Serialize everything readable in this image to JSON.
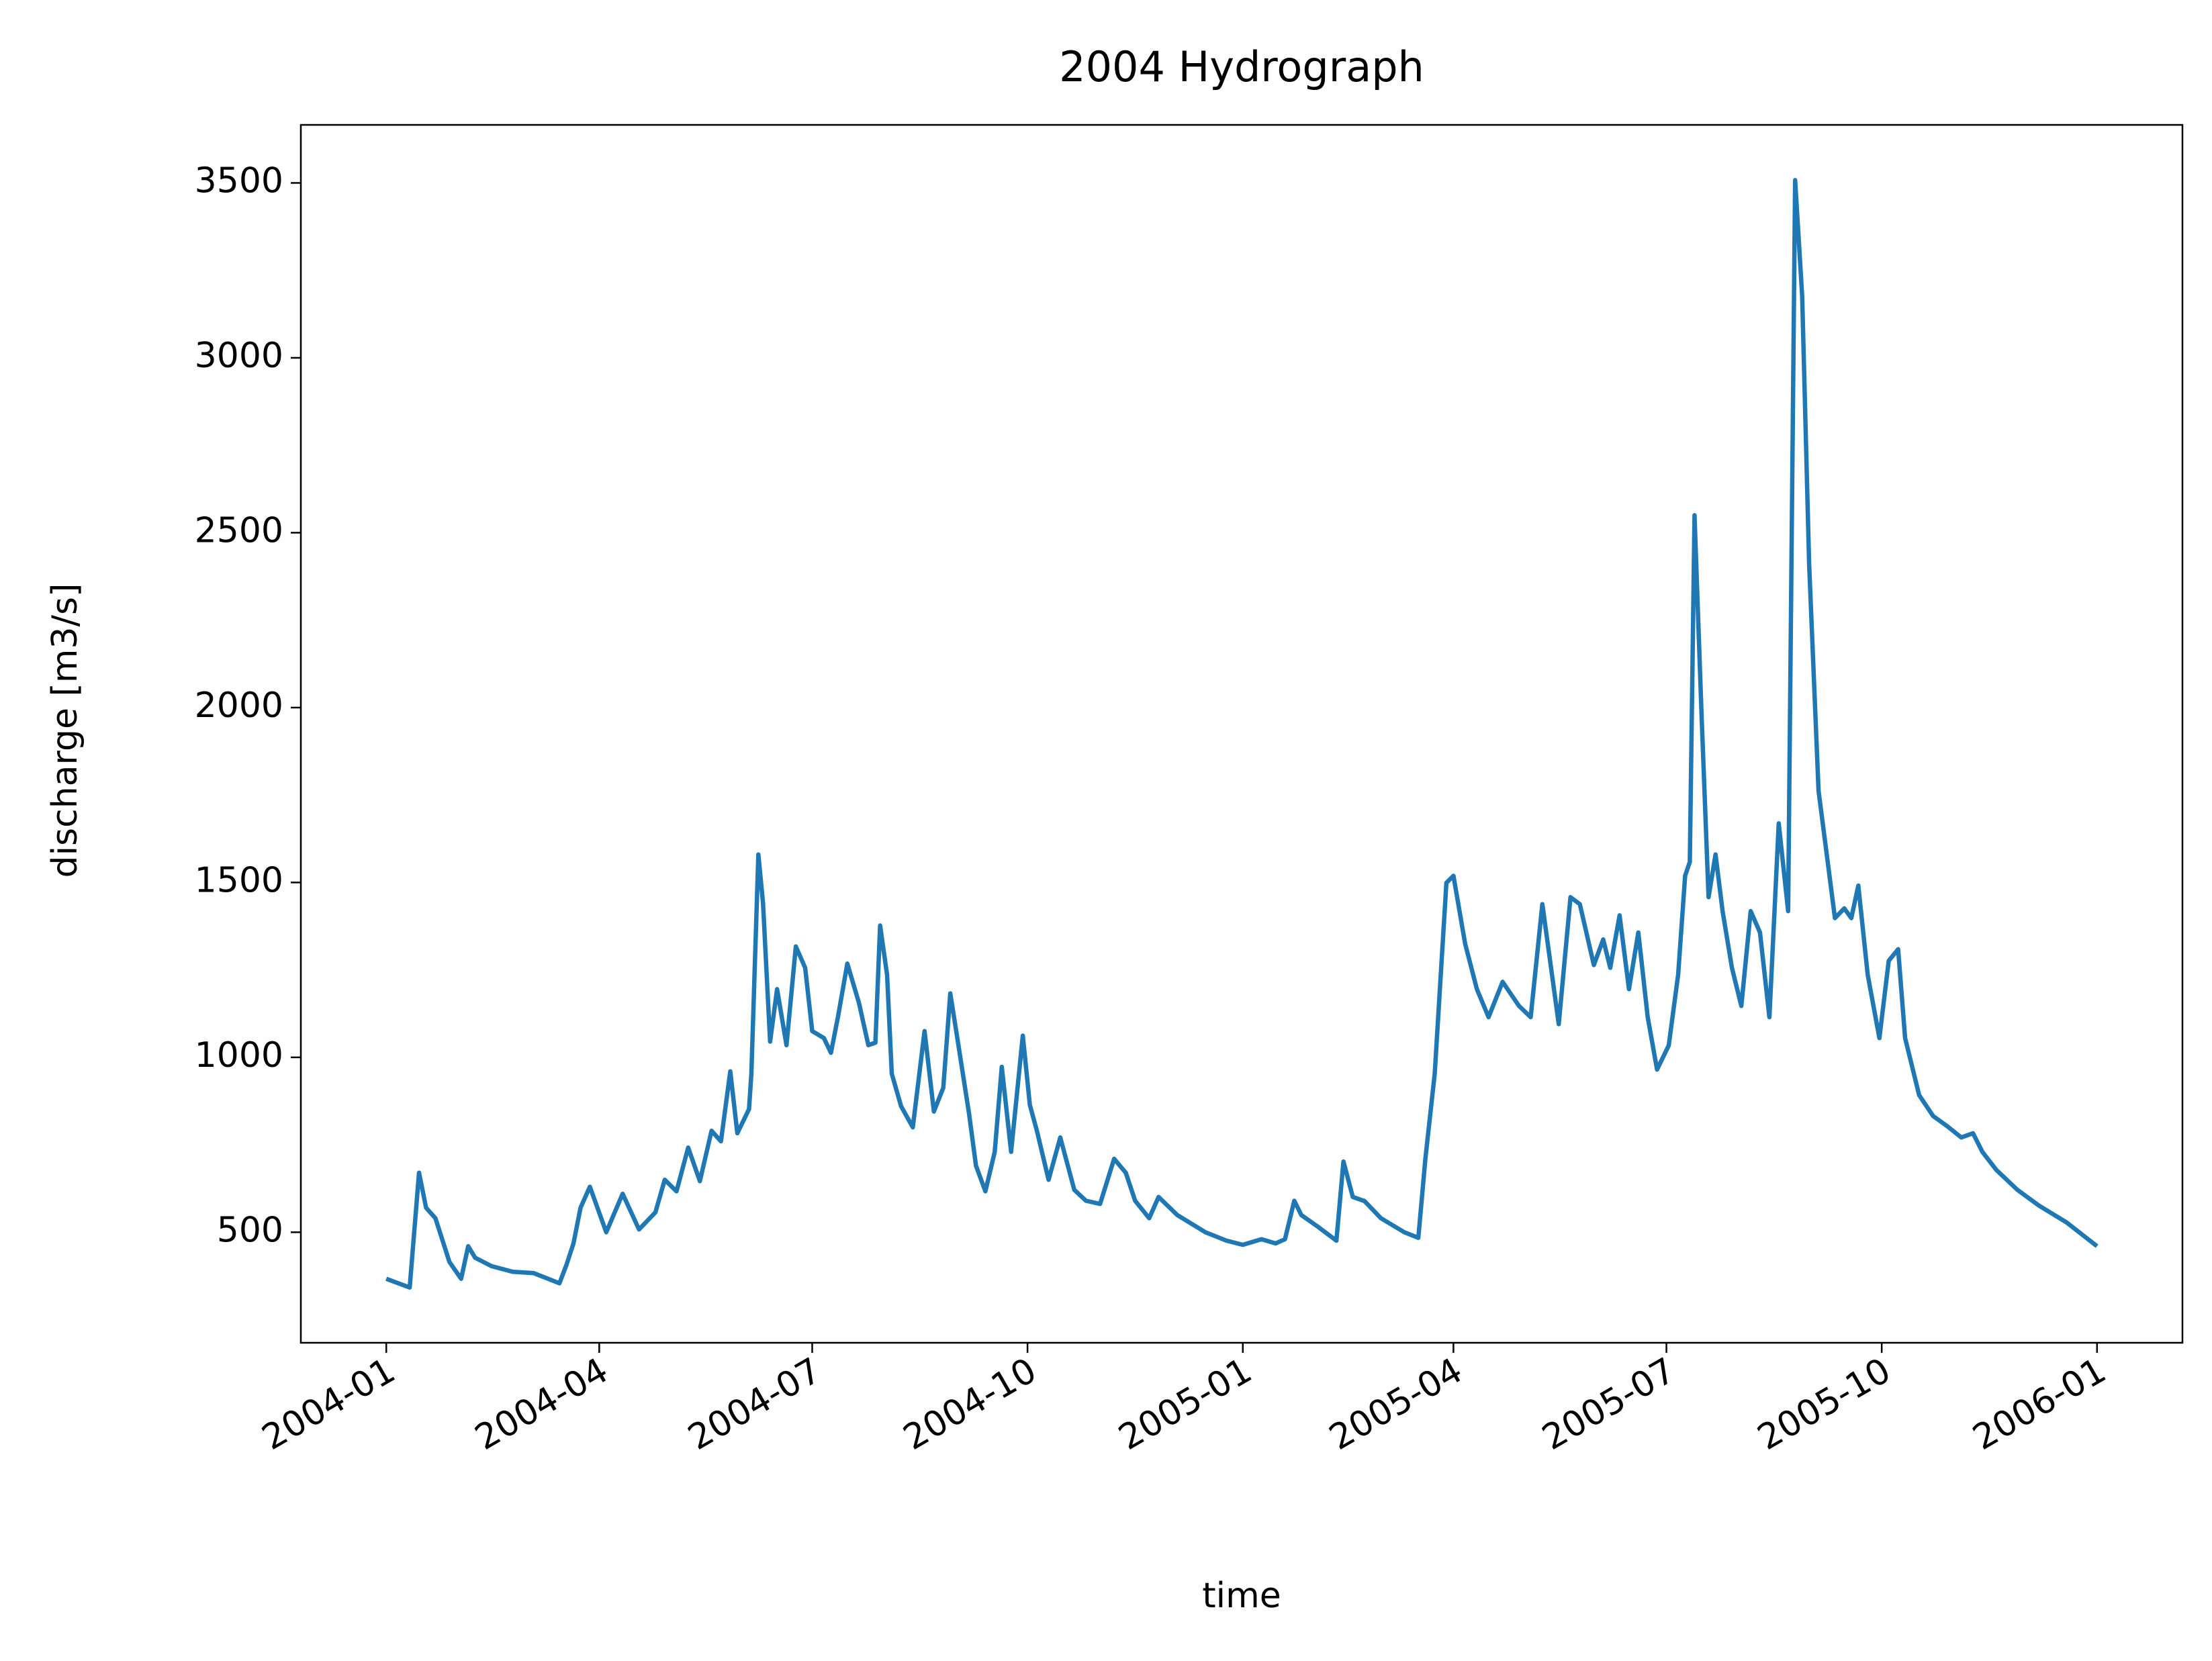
{
  "chart_data": {
    "type": "line",
    "title": "2004 Hydrograph",
    "x_label": "time",
    "y_label": "discharge [m3/s]",
    "x": [
      0,
      10,
      14,
      17,
      21,
      27,
      32,
      35,
      38,
      45,
      54,
      63,
      74,
      77,
      80,
      83,
      87,
      94,
      101,
      108,
      115,
      119,
      124,
      129,
      134,
      139,
      143,
      147,
      150,
      155,
      156,
      159,
      161,
      164,
      167,
      171,
      175,
      179,
      182,
      187,
      190,
      193,
      197,
      202,
      206,
      209,
      211,
      214,
      216,
      220,
      225,
      230,
      234,
      238,
      241,
      244,
      249,
      252,
      256,
      260,
      263,
      267,
      272,
      275,
      278,
      283,
      288,
      294,
      299,
      305,
      311,
      316,
      320,
      326,
      330,
      338,
      350,
      359,
      366,
      374,
      380,
      384,
      388,
      391,
      398,
      406,
      409,
      413,
      418,
      425,
      435,
      441,
      444,
      448,
      453,
      456,
      461,
      466,
      471,
      477,
      484,
      489,
      494,
      501,
      506,
      510,
      516,
      520,
      523,
      527,
      531,
      535,
      539,
      543,
      548,
      552,
      555,
      557,
      559,
      562,
      565,
      568,
      571,
      575,
      579,
      583,
      587,
      591,
      595,
      599,
      602,
      605,
      608,
      612,
      619,
      623,
      626,
      629,
      633,
      638,
      642,
      646,
      649,
      655,
      661,
      667,
      673,
      678,
      682,
      688,
      697,
      706,
      718,
      731
    ],
    "series": [
      {
        "name": "discharge",
        "color": "#1f77b4",
        "values": [
          367,
          342,
          670,
          570,
          540,
          415,
          367,
          460,
          427,
          403,
          387,
          383,
          354,
          407,
          468,
          570,
          630,
          500,
          610,
          508,
          557,
          650,
          617,
          742,
          646,
          790,
          760,
          960,
          783,
          852,
          953,
          1580,
          1440,
          1045,
          1195,
          1035,
          1317,
          1256,
          1075,
          1055,
          1013,
          1115,
          1268,
          1155,
          1035,
          1042,
          1377,
          1236,
          953,
          860,
          800,
          1075,
          845,
          913,
          1183,
          1055,
          840,
          690,
          617,
          730,
          973,
          730,
          1062,
          864,
          790,
          650,
          771,
          621,
          590,
          581,
          710,
          670,
          590,
          540,
          601,
          549,
          500,
          476,
          464,
          480,
          468,
          480,
          590,
          549,
          516,
          476,
          702,
          601,
          589,
          540,
          500,
          484,
          710,
          953,
          1499,
          1519,
          1325,
          1195,
          1115,
          1216,
          1147,
          1115,
          1438,
          1095,
          1458,
          1438,
          1264,
          1337,
          1256,
          1406,
          1195,
          1357,
          1115,
          965,
          1034,
          1236,
          1519,
          1559,
          2550,
          1984,
          1458,
          1580,
          1418,
          1256,
          1147,
          1418,
          1357,
          1115,
          1669,
          1418,
          3508,
          3177,
          2409,
          1762,
          1398,
          1426,
          1398,
          1491,
          1236,
          1055,
          1276,
          1309,
          1055,
          892,
          832,
          803,
          771,
          783,
          730,
          678,
          621,
          577,
          528,
          460
        ]
      }
    ],
    "xlim": [
      -36.5,
      767.5
    ],
    "xticks": [
      {
        "value": 0,
        "label": "2004-01"
      },
      {
        "value": 91,
        "label": "2004-04"
      },
      {
        "value": 182,
        "label": "2004-07"
      },
      {
        "value": 274,
        "label": "2004-10"
      },
      {
        "value": 366,
        "label": "2005-01"
      },
      {
        "value": 456,
        "label": "2005-04"
      },
      {
        "value": 547,
        "label": "2005-07"
      },
      {
        "value": 639,
        "label": "2005-10"
      },
      {
        "value": 731,
        "label": "2006-01"
      }
    ],
    "ylim": [
      184,
      3666
    ],
    "yticks": [
      500,
      1000,
      1500,
      2000,
      2500,
      3000,
      3500
    ]
  }
}
